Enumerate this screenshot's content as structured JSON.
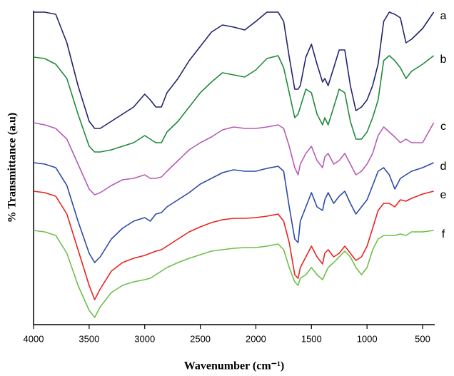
{
  "chart_data": {
    "type": "line",
    "x_label": "Wavenumber (cm⁻¹)",
    "y_label": "% Transmittance (a.u)",
    "xlim": [
      4000,
      400
    ],
    "ylim": [
      0,
      440
    ],
    "xticks": [
      4000,
      3500,
      3000,
      2500,
      2000,
      1500,
      1000,
      500
    ],
    "x": [
      4000,
      3900,
      3800,
      3700,
      3600,
      3500,
      3450,
      3400,
      3300,
      3200,
      3100,
      3000,
      2950,
      2900,
      2850,
      2800,
      2700,
      2600,
      2500,
      2400,
      2300,
      2200,
      2100,
      2000,
      1900,
      1800,
      1750,
      1700,
      1650,
      1620,
      1600,
      1550,
      1500,
      1450,
      1400,
      1380,
      1350,
      1300,
      1250,
      1200,
      1150,
      1100,
      1050,
      1000,
      950,
      900,
      850,
      800,
      750,
      700,
      650,
      600,
      500,
      400
    ],
    "series": [
      {
        "name": "a",
        "color": "#23236e",
        "values": [
          438,
          438,
          435,
          395,
          335,
          285,
          275,
          275,
          285,
          295,
          305,
          323,
          315,
          305,
          305,
          325,
          345,
          370,
          390,
          410,
          420,
          417,
          413,
          425,
          438,
          438,
          425,
          375,
          330,
          330,
          335,
          375,
          393,
          365,
          340,
          345,
          335,
          360,
          385,
          385,
          335,
          300,
          305,
          315,
          335,
          365,
          425,
          438,
          435,
          430,
          395,
          400,
          415,
          438
        ]
      },
      {
        "name": "b",
        "color": "#1f8a3c",
        "values": [
          375,
          373,
          365,
          345,
          295,
          250,
          242,
          242,
          245,
          250,
          255,
          265,
          260,
          255,
          255,
          270,
          285,
          305,
          325,
          340,
          353,
          350,
          347,
          357,
          373,
          377,
          360,
          325,
          290,
          295,
          305,
          330,
          325,
          295,
          280,
          290,
          280,
          305,
          330,
          325,
          285,
          260,
          260,
          270,
          290,
          315,
          370,
          377,
          370,
          360,
          345,
          355,
          365,
          377
        ]
      },
      {
        "name": "c",
        "color": "#b55cb5",
        "values": [
          283,
          280,
          275,
          260,
          225,
          190,
          182,
          185,
          195,
          203,
          205,
          210,
          205,
          205,
          207,
          215,
          230,
          245,
          255,
          263,
          273,
          277,
          275,
          275,
          277,
          280,
          275,
          250,
          220,
          210,
          225,
          240,
          250,
          230,
          220,
          235,
          240,
          225,
          230,
          240,
          225,
          210,
          215,
          225,
          240,
          265,
          277,
          270,
          263,
          255,
          260,
          255,
          255,
          283
        ]
      },
      {
        "name": "d",
        "color": "#2b4aa6",
        "values": [
          227,
          225,
          220,
          195,
          145,
          100,
          87,
          95,
          120,
          135,
          145,
          150,
          145,
          155,
          157,
          165,
          175,
          185,
          197,
          205,
          213,
          217,
          215,
          215,
          219,
          222,
          215,
          165,
          120,
          115,
          145,
          165,
          185,
          165,
          160,
          175,
          185,
          170,
          180,
          187,
          170,
          155,
          165,
          175,
          195,
          215,
          220,
          210,
          190,
          205,
          210,
          215,
          220,
          227
        ]
      },
      {
        "name": "e",
        "color": "#e8241e",
        "values": [
          187,
          185,
          180,
          155,
          105,
          55,
          35,
          50,
          75,
          87,
          93,
          97,
          100,
          103,
          105,
          110,
          120,
          130,
          137,
          143,
          147,
          149,
          149,
          150,
          152,
          155,
          145,
          115,
          70,
          65,
          80,
          95,
          110,
          95,
          85,
          100,
          105,
          95,
          100,
          110,
          100,
          90,
          95,
          110,
          135,
          160,
          170,
          170,
          165,
          175,
          173,
          177,
          183,
          187
        ]
      },
      {
        "name": "f",
        "color": "#6cc04a",
        "values": [
          132,
          130,
          125,
          100,
          55,
          20,
          10,
          25,
          45,
          55,
          60,
          63,
          65,
          70,
          75,
          80,
          87,
          93,
          98,
          103,
          105,
          107,
          108,
          108,
          110,
          113,
          105,
          80,
          60,
          55,
          65,
          70,
          80,
          70,
          63,
          70,
          80,
          87,
          95,
          103,
          95,
          80,
          70,
          80,
          105,
          120,
          125,
          125,
          125,
          127,
          125,
          130,
          130,
          132
        ]
      }
    ]
  }
}
